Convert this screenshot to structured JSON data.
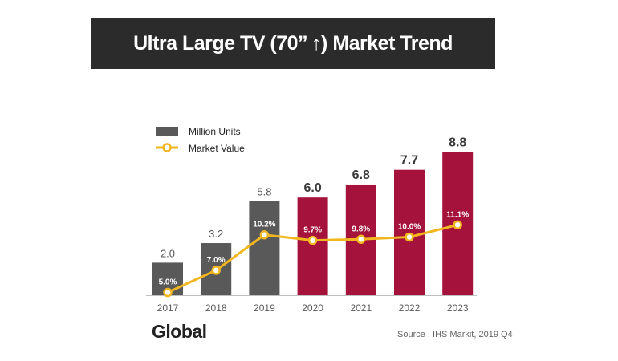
{
  "title": "Ultra Large TV (70’’ ↑) Market Trend",
  "region": "Global",
  "source": "Source : IHS Markit, 2019 Q4",
  "colors": {
    "historic_bar": "#595959",
    "forecast_bar": "#a5123b",
    "line": "#f2b71f",
    "title_bg": "#2b2b2b"
  },
  "chart_data": {
    "type": "bar",
    "categories": [
      "2017",
      "2018",
      "2019",
      "2020",
      "2021",
      "2022",
      "2023"
    ],
    "series": [
      {
        "name": "Million Units",
        "kind": "bar",
        "values": [
          2.0,
          3.2,
          5.8,
          6.0,
          6.8,
          7.7,
          8.8
        ],
        "labels": [
          "2.0",
          "3.2",
          "5.8",
          "6.0",
          "6.8",
          "7.7",
          "8.8"
        ],
        "forecast_from_index": 3
      },
      {
        "name": "Market Value",
        "kind": "line",
        "values": [
          5.0,
          7.0,
          10.2,
          9.7,
          9.8,
          10.0,
          11.1
        ],
        "labels": [
          "5.0%",
          "7.0%",
          "10.2%",
          "9.7%",
          "9.8%",
          "10.0%",
          "11.1%"
        ]
      }
    ],
    "legend": [
      "Million Units",
      "Market Value"
    ],
    "legend_position": "top-left",
    "grid": false
  }
}
